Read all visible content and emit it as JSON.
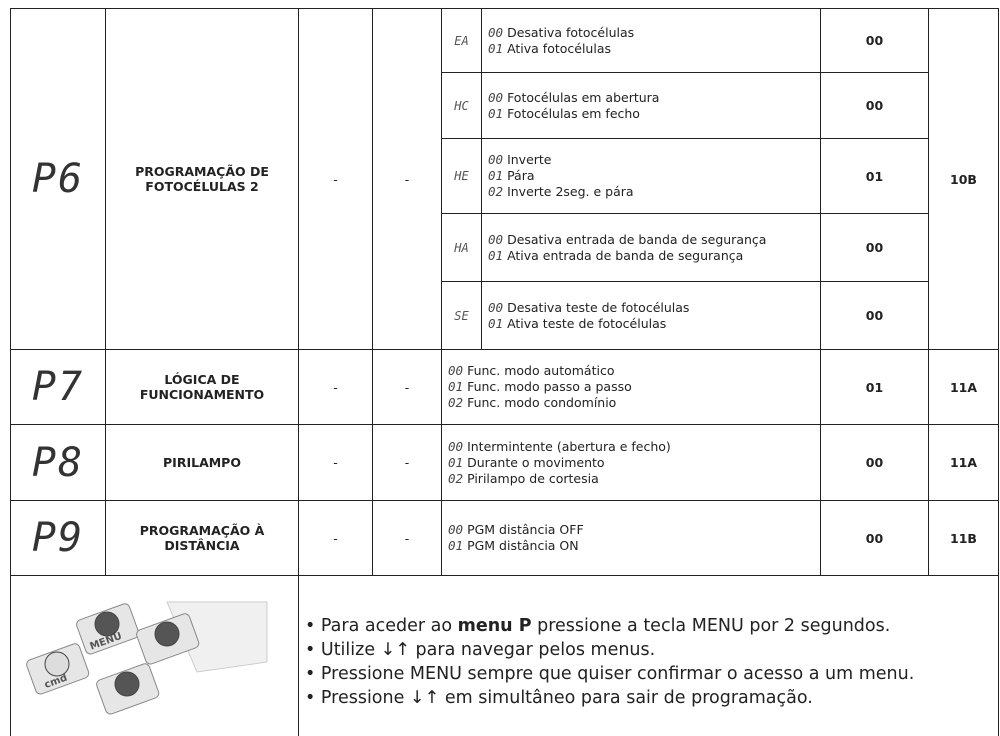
{
  "table": {
    "rows": [
      {
        "display": "P6",
        "name": "PROGRAMAÇÃO DE FOTOCÉLULAS 2",
        "a": "-",
        "b": "-",
        "page": "10B",
        "subs": [
          {
            "code": "EA",
            "items": [
              {
                "n": "00",
                "t": "Desativa fotocélulas"
              },
              {
                "n": "01",
                "t": "Ativa fotocélulas"
              }
            ],
            "default": "00"
          },
          {
            "code": "HC",
            "items": [
              {
                "n": "00",
                "t": "Fotocélulas em abertura"
              },
              {
                "n": "01",
                "t": "Fotocélulas em fecho"
              }
            ],
            "default": "00"
          },
          {
            "code": "HE",
            "items": [
              {
                "n": "00",
                "t": "Inverte"
              },
              {
                "n": "01",
                "t": "Pára"
              },
              {
                "n": "02",
                "t": "Inverte 2seg. e pára"
              }
            ],
            "default": "01"
          },
          {
            "code": "HA",
            "items": [
              {
                "n": "00",
                "t": "Desativa entrada de banda de segurança"
              },
              {
                "n": "01",
                "t": "Ativa entrada de banda de segurança"
              }
            ],
            "default": "00"
          },
          {
            "code": "SE",
            "items": [
              {
                "n": "00",
                "t": "Desativa teste de fotocélulas"
              },
              {
                "n": "01",
                "t": "Ativa teste de fotocélulas"
              }
            ],
            "default": "00"
          }
        ]
      },
      {
        "display": "P7",
        "name": "LÓGICA DE FUNCIONAMENTO",
        "a": "-",
        "b": "-",
        "page": "11A",
        "default": "01",
        "items": [
          {
            "n": "00",
            "t": "Func. modo automático"
          },
          {
            "n": "01",
            "t": "Func. modo passo a passo"
          },
          {
            "n": "02",
            "t": "Func. modo condomínio"
          }
        ]
      },
      {
        "display": "P8",
        "name": "PIRILAMPO",
        "a": "-",
        "b": "-",
        "page": "11A",
        "default": "00",
        "items": [
          {
            "n": "00",
            "t": "Intermintente (abertura e fecho)"
          },
          {
            "n": "01",
            "t": "Durante o movimento"
          },
          {
            "n": "02",
            "t": "Pirilampo de cortesia"
          }
        ]
      },
      {
        "display": "P9",
        "name": "PROGRAMAÇÃO À DISTÂNCIA",
        "a": "-",
        "b": "-",
        "page": "11B",
        "default": "00",
        "items": [
          {
            "n": "00",
            "t": "PGM distância OFF"
          },
          {
            "n": "01",
            "t": "PGM distância ON"
          }
        ]
      }
    ]
  },
  "footer": {
    "buttons": [
      "MENU",
      "cmd"
    ],
    "lines": [
      [
        "Para aceder ao ",
        "menu P",
        " pressione a tecla MENU por 2 segundos."
      ],
      [
        "Utilize ↓↑ para navegar pelos menus."
      ],
      [
        "Pressione MENU sempre que quiser confirmar o acesso a um menu."
      ],
      [
        "Pressione ↓↑ em simultâneo para sair de programação."
      ]
    ]
  }
}
